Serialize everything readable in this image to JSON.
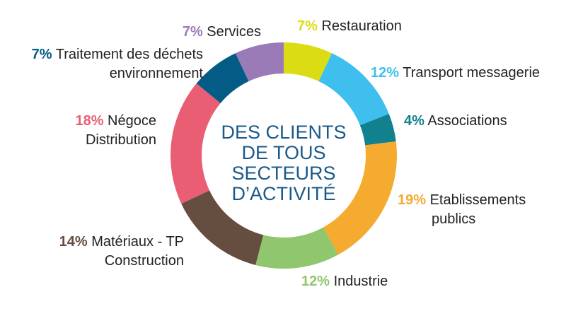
{
  "chart_data": {
    "type": "pie",
    "variant": "donut",
    "center_title": [
      "DES CLIENTS",
      "DE TOUS",
      "SECTEURS",
      "D’ACTIVITÉ"
    ],
    "legend": "labels around ring",
    "slices": [
      {
        "pct_label": "7%",
        "value": 7,
        "label": [
          "Restauration"
        ],
        "color": "#dcdc14"
      },
      {
        "pct_label": "12%",
        "value": 12,
        "label": [
          "Transport messagerie"
        ],
        "color": "#3fbfee"
      },
      {
        "pct_label": "4%",
        "value": 4,
        "label": [
          "Associations"
        ],
        "color": "#11808f"
      },
      {
        "pct_label": "19%",
        "value": 19,
        "label": [
          "Etablissements",
          "publics"
        ],
        "color": "#f5aa30"
      },
      {
        "pct_label": "12%",
        "value": 12,
        "label": [
          "Industrie"
        ],
        "color": "#90c66e"
      },
      {
        "pct_label": "14%",
        "value": 14,
        "label": [
          "Matériaux - TP",
          "Construction"
        ],
        "color": "#654e40"
      },
      {
        "pct_label": "18%",
        "value": 18,
        "label": [
          "Négoce",
          "Distribution"
        ],
        "color": "#ea5e74"
      },
      {
        "pct_label": "7%",
        "value": 7,
        "label": [
          "Traitement des déchets",
          "environnement"
        ],
        "color": "#045c86"
      },
      {
        "pct_label": "7%",
        "value": 7,
        "label": [
          "Services"
        ],
        "color": "#9a7bb8"
      }
    ]
  }
}
